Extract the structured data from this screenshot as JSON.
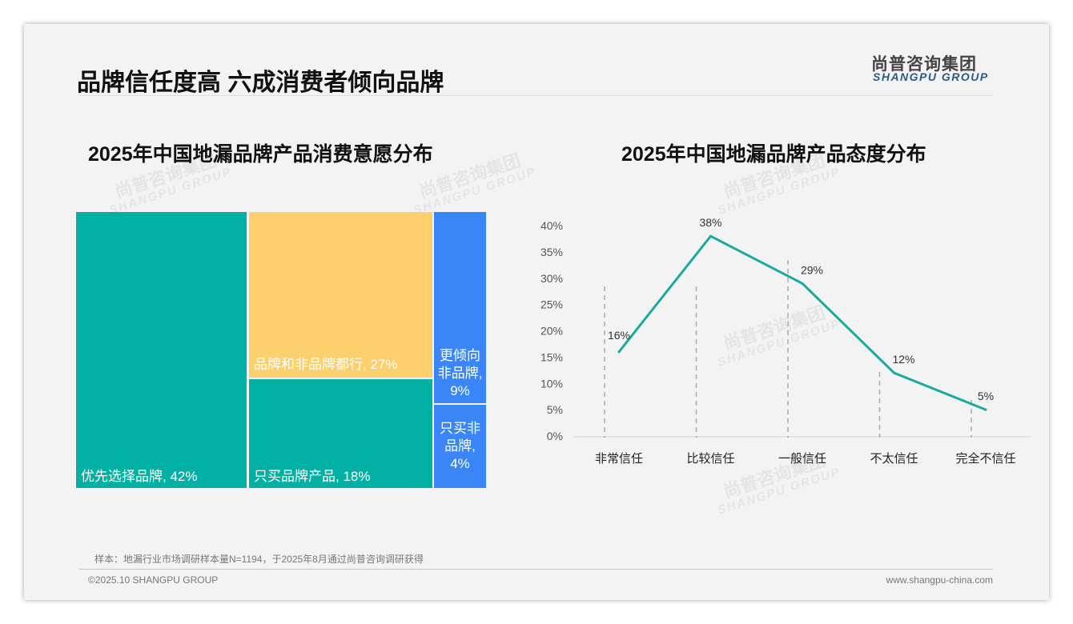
{
  "header": {
    "title": "品牌信任度高 六成消费者倾向品牌",
    "logo_cn": "尚普咨询集团",
    "logo_en": "SHANGPU GROUP"
  },
  "watermark": {
    "cn": "尚普咨询集团",
    "en": "SHANGPU GROUP"
  },
  "chart_data": [
    {
      "type": "treemap",
      "title": "2025年中国地漏品牌产品消费意愿分布",
      "items": [
        {
          "label": "优先选择品牌, 42%",
          "value": 42,
          "color": "#00b0a4"
        },
        {
          "label": "品牌和非品牌都行, 27%",
          "value": 27,
          "color": "#fdd06d"
        },
        {
          "label": "只买品牌产品, 18%",
          "value": 18,
          "color": "#00b0a4"
        },
        {
          "label": "更倾向非品牌, 9%",
          "value": 9,
          "color": "#3a86f8"
        },
        {
          "label": "只买非品牌, 4%",
          "value": 4,
          "color": "#3a86f8"
        }
      ]
    },
    {
      "type": "line",
      "title": "2025年中国地漏品牌产品态度分布",
      "categories": [
        "非常信任",
        "比较信任",
        "一般信任",
        "不太信任",
        "完全不信任"
      ],
      "values": [
        16,
        38,
        29,
        12,
        5
      ],
      "data_labels": [
        "16%",
        "38%",
        "29%",
        "12%",
        "5%"
      ],
      "yticks": [
        "0%",
        "5%",
        "10%",
        "15%",
        "20%",
        "25%",
        "30%",
        "35%",
        "40%"
      ],
      "ylim": [
        0,
        40
      ],
      "color": "#1aaa9e",
      "grid": false
    }
  ],
  "footer": {
    "note": "样本：地漏行业市场调研样本量N=1194，于2025年8月通过尚普咨询调研获得",
    "copyright": "©2025.10 SHANGPU GROUP",
    "website": "www.shangpu-china.com"
  }
}
